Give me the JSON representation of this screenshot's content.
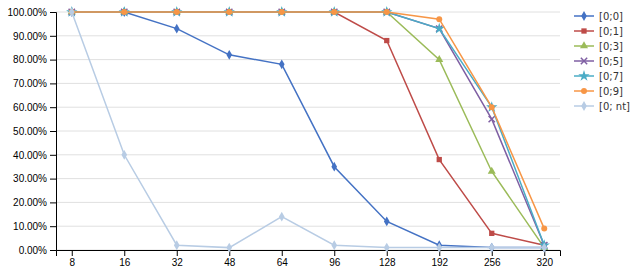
{
  "chart_data": {
    "type": "line",
    "categories": [
      "8",
      "16",
      "32",
      "48",
      "64",
      "96",
      "128",
      "192",
      "256",
      "320"
    ],
    "series": [
      {
        "name": "[0;0]",
        "color": "#4472C4",
        "marker": "diamond",
        "values": [
          1.0,
          1.0,
          0.93,
          0.82,
          0.78,
          0.35,
          0.12,
          0.02,
          0.01,
          0.01
        ]
      },
      {
        "name": "[0;1]",
        "color": "#BE4B48",
        "marker": "square",
        "values": [
          1.0,
          1.0,
          1.0,
          1.0,
          1.0,
          1.0,
          0.88,
          0.38,
          0.07,
          0.02
        ]
      },
      {
        "name": "[0;3]",
        "color": "#9BBB59",
        "marker": "triangle",
        "values": [
          1.0,
          1.0,
          1.0,
          1.0,
          1.0,
          1.0,
          1.0,
          0.8,
          0.33,
          0.01
        ]
      },
      {
        "name": "[0;5]",
        "color": "#7F5FA3",
        "marker": "x",
        "values": [
          1.0,
          1.0,
          1.0,
          1.0,
          1.0,
          1.0,
          1.0,
          0.93,
          0.55,
          0.02
        ]
      },
      {
        "name": "[0;7]",
        "color": "#4BACC6",
        "marker": "star",
        "values": [
          1.0,
          1.0,
          1.0,
          1.0,
          1.0,
          1.0,
          1.0,
          0.93,
          0.6,
          0.02
        ]
      },
      {
        "name": "[0;9]",
        "color": "#F79646",
        "marker": "circle",
        "values": [
          1.0,
          1.0,
          1.0,
          1.0,
          1.0,
          1.0,
          1.0,
          0.97,
          0.6,
          0.09
        ]
      },
      {
        "name": "[0; nt]",
        "color": "#B8CCE4",
        "marker": "diamond",
        "values": [
          1.0,
          0.4,
          0.02,
          0.01,
          0.14,
          0.02,
          0.01,
          0.01,
          0.01,
          0.01
        ]
      }
    ],
    "ylim": [
      0.0,
      1.0
    ],
    "yticks": [
      {
        "value": 0.0,
        "label": "0.00%"
      },
      {
        "value": 0.1,
        "label": "10.00%"
      },
      {
        "value": 0.2,
        "label": "20.00%"
      },
      {
        "value": 0.3,
        "label": "30.00%"
      },
      {
        "value": 0.4,
        "label": "40.00%"
      },
      {
        "value": 0.5,
        "label": "50.00%"
      },
      {
        "value": 0.6,
        "label": "60.00%"
      },
      {
        "value": 0.7,
        "label": "70.00%"
      },
      {
        "value": 0.8,
        "label": "80.00%"
      },
      {
        "value": 0.9,
        "label": "90.00%"
      },
      {
        "value": 1.0,
        "label": "100.00%"
      }
    ],
    "grid": true,
    "legend": "right"
  }
}
